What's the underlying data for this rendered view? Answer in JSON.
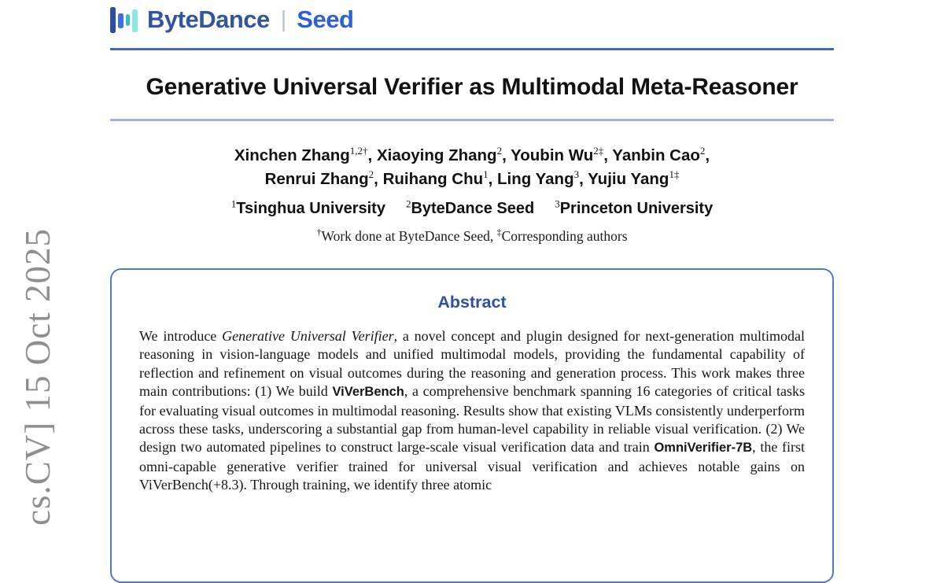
{
  "brand": {
    "bytedance": "ByteDance",
    "separator": "|",
    "seed": "Seed",
    "colors": {
      "bytedance_text": "#33549f",
      "seed_text": "#2f5fd6",
      "separator": "#b9c2d0",
      "bar1": "#2b4fa5",
      "bar2": "#3d6fe0",
      "bar3": "#2fc0c6",
      "bar4": "#8ce8e2"
    }
  },
  "arxiv_sidebar": {
    "text": "cs.CV] 15 Oct 2025",
    "color": "#8f8f8f"
  },
  "rules": {
    "top_color": "#4267c1",
    "title_color": "#9fb3de"
  },
  "title": "Generative Universal Verifier as Multimodal Meta-Reasoner",
  "authors": {
    "line1": [
      {
        "name": "Xinchen Zhang",
        "sup": "1,2†",
        "tail": ", "
      },
      {
        "name": "Xiaoying Zhang",
        "sup": "2",
        "tail": ", "
      },
      {
        "name": "Youbin Wu",
        "sup": "2‡",
        "tail": ", "
      },
      {
        "name": "Yanbin Cao",
        "sup": "2",
        "tail": ","
      }
    ],
    "line2": [
      {
        "name": "Renrui Zhang",
        "sup": "2",
        "tail": ", "
      },
      {
        "name": "Ruihang Chu",
        "sup": "1",
        "tail": ", "
      },
      {
        "name": "Ling Yang",
        "sup": "3",
        "tail": ", "
      },
      {
        "name": "Yujiu Yang",
        "sup": "1‡",
        "tail": ""
      }
    ]
  },
  "affiliations": [
    {
      "sup": "1",
      "name": "Tsinghua University"
    },
    {
      "sup": "2",
      "name": "ByteDance Seed"
    },
    {
      "sup": "3",
      "name": "Princeton University"
    }
  ],
  "footnote": [
    {
      "sup": "†",
      "text": "Work done at ByteDance Seed, "
    },
    {
      "sup": "‡",
      "text": "Corresponding authors"
    }
  ],
  "abstract": {
    "heading": "Abstract",
    "heading_color": "#2d50a8",
    "border_color": "#4d7ccc",
    "segments": [
      {
        "style": "serif",
        "text": "We introduce "
      },
      {
        "style": "italic",
        "text": "Generative Universal Verifier"
      },
      {
        "style": "serif",
        "text": ", a novel concept and plugin designed for next-generation multimodal reasoning in vision-language models and unified multimodal models, providing the fundamental capability of reflection and refinement on visual outcomes during the reasoning and generation process.  This work makes three main contributions:  (1) We build "
      },
      {
        "style": "boldsans",
        "text": "ViVerBench"
      },
      {
        "style": "serif",
        "text": ", a comprehensive benchmark spanning 16 categories of critical tasks for evaluating visual outcomes in multimodal reasoning. Results show that existing VLMs consistently underperform across these tasks, underscoring a substantial gap from human-level capability in reliable visual verification. (2) We design two automated pipelines to construct large-scale visual verification data and train "
      },
      {
        "style": "boldsans",
        "text": "OmniVerifier-7B"
      },
      {
        "style": "serif",
        "text": ", the first omni-capable generative verifier trained for universal visual verification and achieves notable gains on ViVerBench(+8.3). Through training, we identify three atomic"
      }
    ]
  }
}
